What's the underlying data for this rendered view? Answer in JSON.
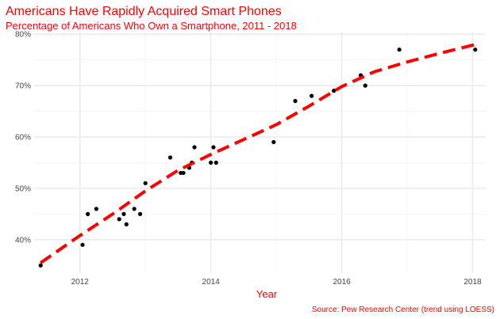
{
  "chart_data": {
    "type": "scatter",
    "title": "Americans Have Rapidly Acquired Smart Phones",
    "subtitle": "Percentage of Americans Who Own a Smartphone, 2011 - 2018",
    "xlabel": "Year",
    "ylabel": "",
    "caption": "Source: Pew Research Center (trend using LOESS)",
    "xlim": [
      2011.3,
      2018.2
    ],
    "ylim": [
      33.5,
      80.5
    ],
    "x_ticks": [
      2012,
      2014,
      2016,
      2018
    ],
    "x_tick_labels": [
      "2012",
      "2014",
      "2016",
      "2018"
    ],
    "y_ticks": [
      40,
      50,
      60,
      70,
      80
    ],
    "y_tick_labels": [
      "40%",
      "50%",
      "60%",
      "70%",
      "80%"
    ],
    "grid": true,
    "colors": {
      "points": "#000000",
      "trend": "#ff0000",
      "text": "#ff0000"
    },
    "points": [
      {
        "x": 2011.4,
        "y": 35
      },
      {
        "x": 2012.04,
        "y": 39
      },
      {
        "x": 2012.12,
        "y": 45
      },
      {
        "x": 2012.25,
        "y": 46
      },
      {
        "x": 2012.6,
        "y": 44
      },
      {
        "x": 2012.67,
        "y": 45
      },
      {
        "x": 2012.71,
        "y": 43
      },
      {
        "x": 2012.83,
        "y": 46
      },
      {
        "x": 2012.92,
        "y": 45
      },
      {
        "x": 2013.0,
        "y": 51
      },
      {
        "x": 2013.38,
        "y": 56
      },
      {
        "x": 2013.54,
        "y": 53
      },
      {
        "x": 2013.58,
        "y": 53
      },
      {
        "x": 2013.67,
        "y": 54
      },
      {
        "x": 2013.71,
        "y": 55
      },
      {
        "x": 2013.75,
        "y": 58
      },
      {
        "x": 2014.0,
        "y": 55
      },
      {
        "x": 2014.04,
        "y": 58
      },
      {
        "x": 2014.08,
        "y": 55
      },
      {
        "x": 2014.96,
        "y": 59
      },
      {
        "x": 2015.29,
        "y": 67
      },
      {
        "x": 2015.54,
        "y": 68
      },
      {
        "x": 2015.88,
        "y": 69
      },
      {
        "x": 2016.29,
        "y": 72
      },
      {
        "x": 2016.36,
        "y": 70
      },
      {
        "x": 2016.88,
        "y": 77
      },
      {
        "x": 2018.04,
        "y": 77
      }
    ],
    "trend": [
      {
        "x": 2011.4,
        "y": 35.5
      },
      {
        "x": 2012.0,
        "y": 40.8
      },
      {
        "x": 2012.5,
        "y": 45.0
      },
      {
        "x": 2013.0,
        "y": 49.5
      },
      {
        "x": 2013.5,
        "y": 53.5
      },
      {
        "x": 2014.0,
        "y": 56.6
      },
      {
        "x": 2014.5,
        "y": 59.5
      },
      {
        "x": 2015.0,
        "y": 62.4
      },
      {
        "x": 2015.5,
        "y": 66.0
      },
      {
        "x": 2016.0,
        "y": 69.8
      },
      {
        "x": 2016.5,
        "y": 72.7
      },
      {
        "x": 2017.0,
        "y": 74.6
      },
      {
        "x": 2017.5,
        "y": 76.3
      },
      {
        "x": 2018.04,
        "y": 78.0
      }
    ]
  }
}
